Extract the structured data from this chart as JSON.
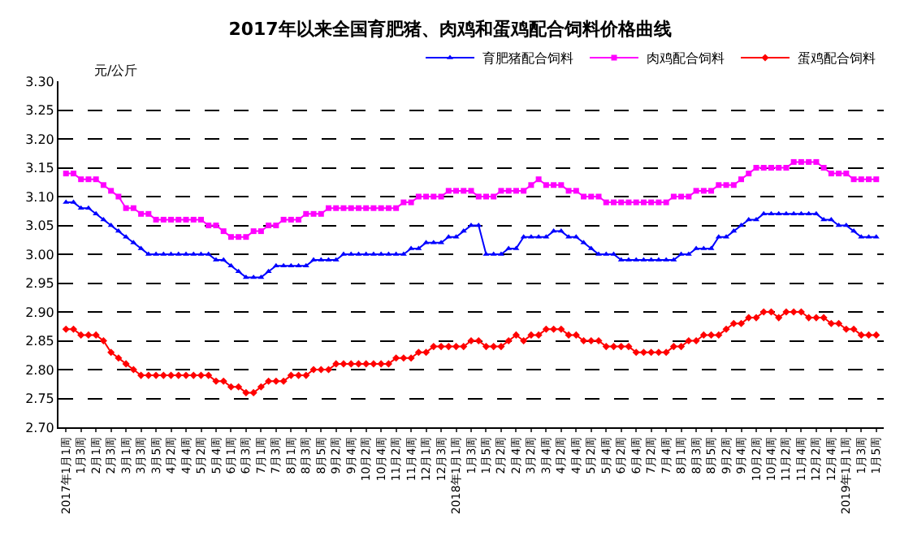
{
  "chart_data": {
    "type": "line",
    "title": "2017年以来全国育肥猪、肉鸡和蛋鸡配合饲料价格曲线",
    "ylabel": "元/公斤",
    "categories": [
      "2017年1月1周",
      null,
      "1月3周",
      null,
      "2月1周",
      null,
      "2月3周",
      null,
      "3月1周",
      null,
      "3月3周",
      null,
      "3月5周",
      null,
      "4月2周",
      null,
      "4月4周",
      null,
      "5月2周",
      null,
      "5月4周",
      null,
      "6月1周",
      null,
      "6月3周",
      null,
      "7月1周",
      null,
      "7月3周",
      null,
      "8月1周",
      null,
      "8月3周",
      null,
      "8月5周",
      null,
      "9月2周",
      null,
      "9月4周",
      null,
      "10月2周",
      null,
      "10月4周",
      null,
      "11月2周",
      null,
      "11月4周",
      null,
      "12月1周",
      null,
      "12月3周",
      null,
      "2018年1月1周",
      null,
      "1月3周",
      null,
      "1月5周",
      null,
      "2月2周",
      null,
      "2月4周",
      null,
      "3月2周",
      null,
      "3月4周",
      null,
      "4月2周",
      null,
      "4月4周",
      null,
      "5月2周",
      null,
      "5月4周",
      null,
      "6月2周",
      null,
      "6月4周",
      null,
      "7月2周",
      null,
      "7月4周",
      null,
      "8月1周",
      null,
      "8月3周",
      null,
      "8月5周",
      null,
      "9月2周",
      null,
      "9月4周",
      null,
      "10月2周",
      null,
      "10月4周",
      null,
      "11月2周",
      null,
      "11月4周",
      null,
      "12月2周",
      null,
      "12月4周",
      null,
      "2019年1月1周",
      null,
      "1月3周",
      null,
      "1月5周"
    ],
    "series": [
      {
        "name": "育肥猪配合饲料",
        "color": "#0000ff",
        "marker": "triangle",
        "values": [
          3.09,
          3.09,
          3.08,
          3.08,
          3.07,
          3.06,
          3.05,
          3.04,
          3.03,
          3.02,
          3.01,
          3.0,
          3.0,
          3.0,
          3.0,
          3.0,
          3.0,
          3.0,
          3.0,
          3.0,
          2.99,
          2.99,
          2.98,
          2.97,
          2.96,
          2.96,
          2.96,
          2.97,
          2.98,
          2.98,
          2.98,
          2.98,
          2.98,
          2.99,
          2.99,
          2.99,
          2.99,
          3.0,
          3.0,
          3.0,
          3.0,
          3.0,
          3.0,
          3.0,
          3.0,
          3.0,
          3.01,
          3.01,
          3.02,
          3.02,
          3.02,
          3.03,
          3.03,
          3.04,
          3.05,
          3.05,
          3.0,
          3.0,
          3.0,
          3.01,
          3.01,
          3.03,
          3.03,
          3.03,
          3.03,
          3.04,
          3.04,
          3.03,
          3.03,
          3.02,
          3.01,
          3.0,
          3.0,
          3.0,
          2.99,
          2.99,
          2.99,
          2.99,
          2.99,
          2.99,
          2.99,
          2.99,
          3.0,
          3.0,
          3.01,
          3.01,
          3.01,
          3.03,
          3.03,
          3.04,
          3.05,
          3.06,
          3.06,
          3.07,
          3.07,
          3.07,
          3.07,
          3.07,
          3.07,
          3.07,
          3.07,
          3.06,
          3.06,
          3.05,
          3.05,
          3.04,
          3.03,
          3.03,
          3.03
        ]
      },
      {
        "name": "肉鸡配合饲料",
        "color": "#ff00ff",
        "marker": "square",
        "values": [
          3.14,
          3.14,
          3.13,
          3.13,
          3.13,
          3.12,
          3.11,
          3.1,
          3.08,
          3.08,
          3.07,
          3.07,
          3.06,
          3.06,
          3.06,
          3.06,
          3.06,
          3.06,
          3.06,
          3.05,
          3.05,
          3.04,
          3.03,
          3.03,
          3.03,
          3.04,
          3.04,
          3.05,
          3.05,
          3.06,
          3.06,
          3.06,
          3.07,
          3.07,
          3.07,
          3.08,
          3.08,
          3.08,
          3.08,
          3.08,
          3.08,
          3.08,
          3.08,
          3.08,
          3.08,
          3.09,
          3.09,
          3.1,
          3.1,
          3.1,
          3.1,
          3.11,
          3.11,
          3.11,
          3.11,
          3.1,
          3.1,
          3.1,
          3.11,
          3.11,
          3.11,
          3.11,
          3.12,
          3.13,
          3.12,
          3.12,
          3.12,
          3.11,
          3.11,
          3.1,
          3.1,
          3.1,
          3.09,
          3.09,
          3.09,
          3.09,
          3.09,
          3.09,
          3.09,
          3.09,
          3.09,
          3.1,
          3.1,
          3.1,
          3.11,
          3.11,
          3.11,
          3.12,
          3.12,
          3.12,
          3.13,
          3.14,
          3.15,
          3.15,
          3.15,
          3.15,
          3.15,
          3.16,
          3.16,
          3.16,
          3.16,
          3.15,
          3.14,
          3.14,
          3.14,
          3.13,
          3.13,
          3.13,
          3.13
        ]
      },
      {
        "name": "蛋鸡配合饲料",
        "color": "#ff0000",
        "marker": "diamond",
        "values": [
          2.87,
          2.87,
          2.86,
          2.86,
          2.86,
          2.85,
          2.83,
          2.82,
          2.81,
          2.8,
          2.79,
          2.79,
          2.79,
          2.79,
          2.79,
          2.79,
          2.79,
          2.79,
          2.79,
          2.79,
          2.78,
          2.78,
          2.77,
          2.77,
          2.76,
          2.76,
          2.77,
          2.78,
          2.78,
          2.78,
          2.79,
          2.79,
          2.79,
          2.8,
          2.8,
          2.8,
          2.81,
          2.81,
          2.81,
          2.81,
          2.81,
          2.81,
          2.81,
          2.81,
          2.82,
          2.82,
          2.82,
          2.83,
          2.83,
          2.84,
          2.84,
          2.84,
          2.84,
          2.84,
          2.85,
          2.85,
          2.84,
          2.84,
          2.84,
          2.85,
          2.86,
          2.85,
          2.86,
          2.86,
          2.87,
          2.87,
          2.87,
          2.86,
          2.86,
          2.85,
          2.85,
          2.85,
          2.84,
          2.84,
          2.84,
          2.84,
          2.83,
          2.83,
          2.83,
          2.83,
          2.83,
          2.84,
          2.84,
          2.85,
          2.85,
          2.86,
          2.86,
          2.86,
          2.87,
          2.88,
          2.88,
          2.89,
          2.89,
          2.9,
          2.9,
          2.89,
          2.9,
          2.9,
          2.9,
          2.89,
          2.89,
          2.89,
          2.88,
          2.88,
          2.87,
          2.87,
          2.86,
          2.86,
          2.86
        ]
      }
    ],
    "ylim": [
      2.7,
      3.3
    ],
    "yticks": [
      {
        "value": 2.7,
        "label": "2.70"
      },
      {
        "value": 2.75,
        "label": "2.75"
      },
      {
        "value": 2.8,
        "label": "2.80"
      },
      {
        "value": 2.85,
        "label": "2.85"
      },
      {
        "value": 2.9,
        "label": "2.90"
      },
      {
        "value": 2.95,
        "label": "2.95"
      },
      {
        "value": 3.0,
        "label": "3.00"
      },
      {
        "value": 3.05,
        "label": "3.05"
      },
      {
        "value": 3.1,
        "label": "3.10"
      },
      {
        "value": 3.15,
        "label": "3.15"
      },
      {
        "value": 3.2,
        "label": "3.20"
      },
      {
        "value": 3.25,
        "label": "3.25"
      },
      {
        "value": 3.3,
        "label": "3.30"
      }
    ],
    "grid": "y",
    "legend": "top right",
    "line_style": "solid"
  }
}
